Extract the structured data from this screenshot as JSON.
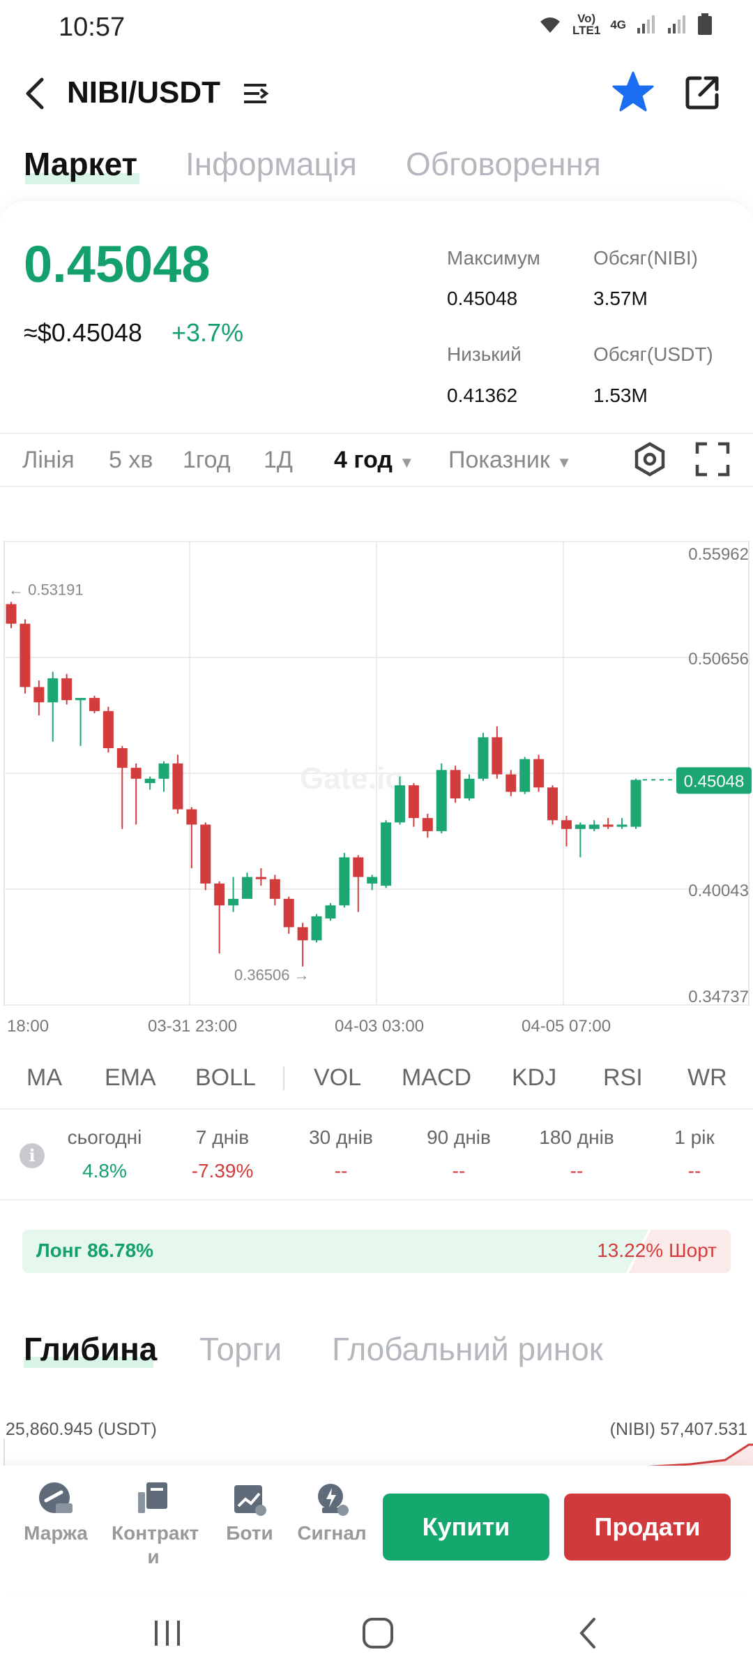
{
  "status_bar": {
    "time": "10:57",
    "network_top": "Vo)",
    "network_bottom": "LTE1",
    "network_type": "4G"
  },
  "header": {
    "pair": "NIBI/USDT",
    "favorite": true
  },
  "tabs": [
    "Маркет",
    "Інформація",
    "Обговорення"
  ],
  "price": {
    "last": "0.45048",
    "usd": "≈$0.45048",
    "change": "+3.7%",
    "high_label": "Максимум",
    "high": "0.45048",
    "vol_base_label": "Обсяг(NIBI)",
    "vol_base": "3.57M",
    "low_label": "Низький",
    "low": "0.41362",
    "vol_quote_label": "Обсяг(USDT)",
    "vol_quote": "1.53M"
  },
  "chart_toolbar": {
    "items": [
      "Лінія",
      "5 хв",
      "1год",
      "1Д"
    ],
    "active_interval": "4 год",
    "indicator_menu": "Показник"
  },
  "chart_data": {
    "type": "candlestick",
    "y_ticks": [
      "0.55962",
      "0.50656",
      "0.40043",
      "0.34737"
    ],
    "ylim": [
      0.34737,
      0.55962
    ],
    "x_ticks": [
      "18:00",
      "03-31 23:00",
      "04-03 03:00",
      "04-05 07:00"
    ],
    "current_price_label": "0.45048",
    "max_marker": "0.53191",
    "min_marker": "0.36506",
    "colors": {
      "up": "#1ba672",
      "down": "#d23c3c"
    },
    "candles": [
      {
        "o": 0.531,
        "h": 0.532,
        "c": 0.522,
        "l": 0.52
      },
      {
        "o": 0.522,
        "h": 0.524,
        "c": 0.493,
        "l": 0.49
      },
      {
        "o": 0.493,
        "h": 0.496,
        "c": 0.486,
        "l": 0.48
      },
      {
        "o": 0.486,
        "h": 0.5,
        "c": 0.497,
        "l": 0.468
      },
      {
        "o": 0.497,
        "h": 0.499,
        "c": 0.487,
        "l": 0.485
      },
      {
        "o": 0.487,
        "h": 0.488,
        "c": 0.488,
        "l": 0.466
      },
      {
        "o": 0.488,
        "h": 0.489,
        "c": 0.482,
        "l": 0.481
      },
      {
        "o": 0.482,
        "h": 0.484,
        "c": 0.465,
        "l": 0.463
      },
      {
        "o": 0.465,
        "h": 0.466,
        "c": 0.456,
        "l": 0.428
      },
      {
        "o": 0.456,
        "h": 0.458,
        "c": 0.451,
        "l": 0.43
      },
      {
        "o": 0.449,
        "h": 0.452,
        "c": 0.451,
        "l": 0.446
      },
      {
        "o": 0.451,
        "h": 0.459,
        "c": 0.458,
        "l": 0.445
      },
      {
        "o": 0.458,
        "h": 0.462,
        "c": 0.437,
        "l": 0.435
      },
      {
        "o": 0.437,
        "h": 0.438,
        "c": 0.43,
        "l": 0.41
      },
      {
        "o": 0.43,
        "h": 0.431,
        "c": 0.403,
        "l": 0.4
      },
      {
        "o": 0.403,
        "h": 0.404,
        "c": 0.393,
        "l": 0.371
      },
      {
        "o": 0.393,
        "h": 0.406,
        "c": 0.396,
        "l": 0.39
      },
      {
        "o": 0.396,
        "h": 0.408,
        "c": 0.406,
        "l": 0.398
      },
      {
        "o": 0.406,
        "h": 0.41,
        "c": 0.405,
        "l": 0.402
      },
      {
        "o": 0.405,
        "h": 0.407,
        "c": 0.396,
        "l": 0.393
      },
      {
        "o": 0.396,
        "h": 0.397,
        "c": 0.383,
        "l": 0.38
      },
      {
        "o": 0.383,
        "h": 0.385,
        "c": 0.377,
        "l": 0.365
      },
      {
        "o": 0.377,
        "h": 0.389,
        "c": 0.388,
        "l": 0.376
      },
      {
        "o": 0.387,
        "h": 0.394,
        "c": 0.393,
        "l": 0.386
      },
      {
        "o": 0.393,
        "h": 0.417,
        "c": 0.415,
        "l": 0.392
      },
      {
        "o": 0.415,
        "h": 0.416,
        "c": 0.406,
        "l": 0.39
      },
      {
        "o": 0.403,
        "h": 0.407,
        "c": 0.406,
        "l": 0.4
      },
      {
        "o": 0.402,
        "h": 0.432,
        "c": 0.431,
        "l": 0.401
      },
      {
        "o": 0.431,
        "h": 0.452,
        "c": 0.448,
        "l": 0.43
      },
      {
        "o": 0.448,
        "h": 0.449,
        "c": 0.433,
        "l": 0.429
      },
      {
        "o": 0.433,
        "h": 0.435,
        "c": 0.427,
        "l": 0.424
      },
      {
        "o": 0.427,
        "h": 0.458,
        "c": 0.455,
        "l": 0.426
      },
      {
        "o": 0.455,
        "h": 0.457,
        "c": 0.442,
        "l": 0.44
      },
      {
        "o": 0.442,
        "h": 0.453,
        "c": 0.451,
        "l": 0.441
      },
      {
        "o": 0.451,
        "h": 0.472,
        "c": 0.47,
        "l": 0.45
      },
      {
        "o": 0.47,
        "h": 0.475,
        "c": 0.453,
        "l": 0.451
      },
      {
        "o": 0.453,
        "h": 0.455,
        "c": 0.445,
        "l": 0.443
      },
      {
        "o": 0.445,
        "h": 0.461,
        "c": 0.46,
        "l": 0.444
      },
      {
        "o": 0.46,
        "h": 0.462,
        "c": 0.447,
        "l": 0.445
      },
      {
        "o": 0.447,
        "h": 0.448,
        "c": 0.432,
        "l": 0.43
      },
      {
        "o": 0.432,
        "h": 0.434,
        "c": 0.428,
        "l": 0.42
      },
      {
        "o": 0.428,
        "h": 0.431,
        "c": 0.43,
        "l": 0.415
      },
      {
        "o": 0.428,
        "h": 0.432,
        "c": 0.43,
        "l": 0.427
      },
      {
        "o": 0.43,
        "h": 0.433,
        "c": 0.429,
        "l": 0.428
      },
      {
        "o": 0.429,
        "h": 0.433,
        "c": 0.43,
        "l": 0.428
      },
      {
        "o": 0.429,
        "h": 0.451,
        "c": 0.45048,
        "l": 0.428
      }
    ]
  },
  "indicators": [
    "MA",
    "EMA",
    "BOLL",
    "VOL",
    "MACD",
    "KDJ",
    "RSI",
    "WR"
  ],
  "performance": [
    {
      "label": "сьогодні",
      "value": "4.8%",
      "trend": "up"
    },
    {
      "label": "7 днів",
      "value": "-7.39%",
      "trend": "down"
    },
    {
      "label": "30 днів",
      "value": "--",
      "trend": "down"
    },
    {
      "label": "90 днів",
      "value": "--",
      "trend": "down"
    },
    {
      "label": "180 днів",
      "value": "--",
      "trend": "down"
    },
    {
      "label": "1 рік",
      "value": "--",
      "trend": "down"
    }
  ],
  "long_short": {
    "long_text": "Лонг 86.78%",
    "short_text": "13.22% Шорт",
    "long_pct": 86.78
  },
  "bottom_tabs": [
    "Глибина",
    "Торги",
    "Глобальний ринок"
  ],
  "depth": {
    "left": "25,860.945 (USDT)",
    "right": "(NIBI) 57,407.531"
  },
  "actions": {
    "margin": "Маржа",
    "contracts": "Контракт\nи",
    "bots": "Боти",
    "signal": "Сигнал",
    "buy": "Купити",
    "sell": "Продати"
  },
  "watermark": "Gate.io"
}
